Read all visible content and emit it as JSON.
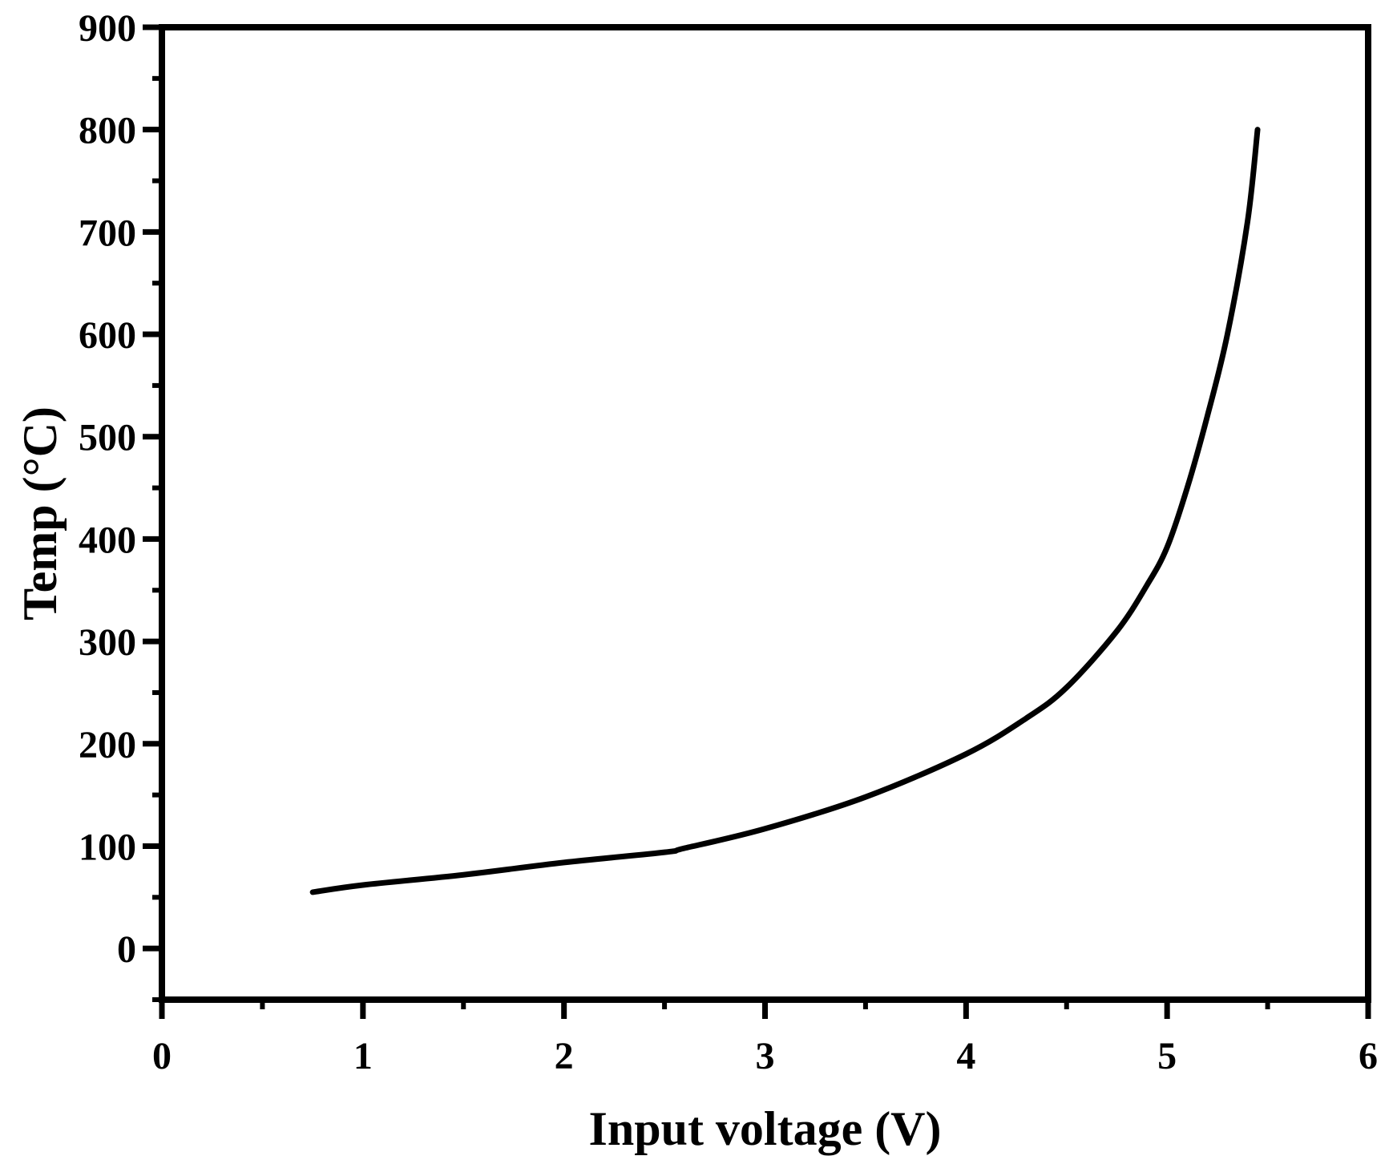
{
  "chart_data": {
    "type": "line",
    "title": "",
    "xlabel": "Input voltage (V)",
    "ylabel": "Temp (°C)",
    "xlim": [
      0,
      6
    ],
    "ylim": [
      -50,
      900
    ],
    "x_ticks": [
      0,
      1,
      2,
      3,
      4,
      5,
      6
    ],
    "y_ticks": [
      0,
      100,
      200,
      300,
      400,
      500,
      600,
      700,
      800,
      900
    ],
    "x_tick_labels": [
      "0",
      "1",
      "2",
      "3",
      "4",
      "5",
      "6"
    ],
    "y_tick_labels": [
      "0",
      "100",
      "200",
      "300",
      "400",
      "500",
      "600",
      "700",
      "800",
      "900"
    ],
    "grid": false,
    "line_color": "#000000",
    "series": [
      {
        "x": [
          0.75,
          1.0,
          1.5,
          2.0,
          2.5,
          2.6,
          3.0,
          3.5,
          4.0,
          4.3,
          4.5,
          4.75,
          4.9,
          5.0,
          5.1,
          5.2,
          5.3,
          5.4,
          5.45
        ],
        "y": [
          55,
          62,
          72,
          84,
          94,
          98,
          117,
          148,
          190,
          225,
          255,
          310,
          355,
          392,
          450,
          520,
          600,
          710,
          800
        ]
      }
    ]
  }
}
